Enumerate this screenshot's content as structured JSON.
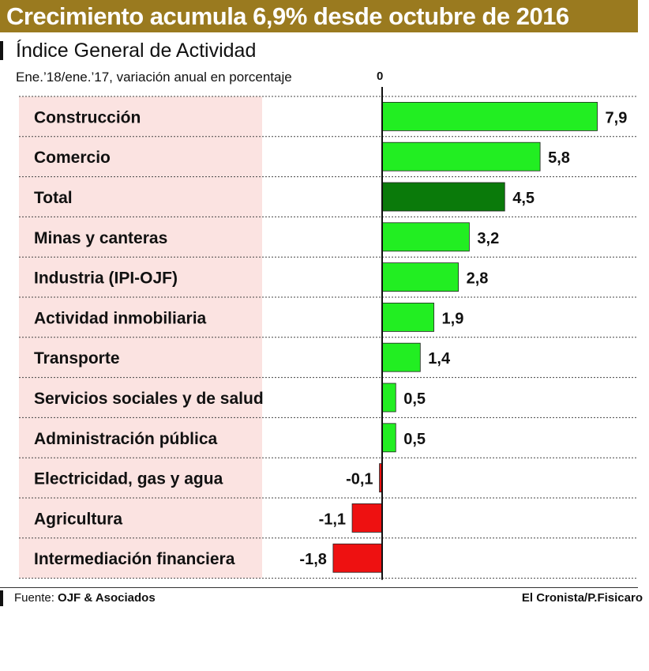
{
  "header": {
    "title": "Crecimiento acumula 6,9% desde octubre de 2016",
    "subtitle": "Índice General de Actividad",
    "note": "Ene.’18/ene.’17, variación anual en porcentaje",
    "zero_label": "0"
  },
  "footer": {
    "source_label": "Fuente:",
    "source_name": "OJF & Asociados",
    "credit": "El Cronista/P.Fisicaro"
  },
  "colors": {
    "positive": "#22ee22",
    "total": "#0a7a0a",
    "negative": "#ee1111",
    "label_band": "#fbe3e1",
    "title_bar": "#9a7a1f"
  },
  "chart_data": {
    "type": "bar",
    "orientation": "horizontal",
    "categories": [
      "Construcción",
      "Comercio",
      "Total",
      "Minas y canteras",
      "Industria (IPI-OJF)",
      "Actividad inmobiliaria",
      "Transporte",
      "Servicios sociales y de salud",
      "Administración pública",
      "Electricidad, gas y agua",
      "Agricultura",
      "Intermediación financiera"
    ],
    "values": [
      7.9,
      5.8,
      4.5,
      3.2,
      2.8,
      1.9,
      1.4,
      0.5,
      0.5,
      -0.1,
      -1.1,
      -1.8
    ],
    "value_labels": [
      "7,9",
      "5,8",
      "4,5",
      "3,2",
      "2,8",
      "1,9",
      "1,4",
      "0,5",
      "0,5",
      "-0,1",
      "-1,1",
      "-1,8"
    ],
    "highlight": "Total",
    "grid": "horizontal dotted separators",
    "xlim": [
      -1.8,
      7.9
    ]
  }
}
